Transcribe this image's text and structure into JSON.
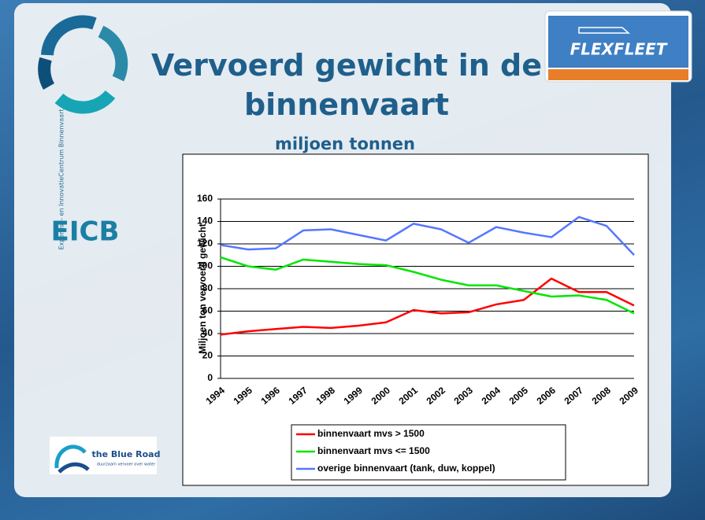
{
  "slide": {
    "title": "Vervoerd gewicht in de binnenvaart",
    "subtitle": "miljoen tonnen",
    "logo_eicb": "EICB",
    "logo_eicb_caption": "Expertise- en InnovatieCentrum Binnenvaart",
    "logo_flexfleet": "FLEXFLEET",
    "logo_blue_road": "the Blue Road",
    "logo_blue_road_caption": "duurzaam vervoer over water"
  },
  "chart_data": {
    "type": "line",
    "y_label": "Miljoen ton vervoerd gewicht",
    "categories": [
      "1994",
      "1995",
      "1996",
      "1997",
      "1998",
      "1999",
      "2000",
      "2001",
      "2002",
      "2003",
      "2004",
      "2005",
      "2006",
      "2007",
      "2008",
      "2009"
    ],
    "series": [
      {
        "name": "binnenvaart mvs > 1500",
        "color": "#ff0000",
        "values": [
          39,
          42,
          44,
          46,
          45,
          47,
          50,
          61,
          58,
          59,
          66,
          70,
          89,
          77,
          77,
          65
        ]
      },
      {
        "name": "binnenvaart mvs <= 1500",
        "color": "#00e600",
        "values": [
          108,
          100,
          97,
          106,
          104,
          102,
          101,
          95,
          88,
          83,
          83,
          78,
          73,
          74,
          70,
          58
        ]
      },
      {
        "name": "overige binnenvaart (tank, duw, koppel)",
        "color": "#5577ff",
        "values": [
          119,
          115,
          116,
          132,
          133,
          128,
          123,
          138,
          133,
          121,
          135,
          130,
          126,
          144,
          136,
          110
        ]
      }
    ],
    "ylim": [
      0,
      160
    ],
    "yticks": [
      0,
      20,
      40,
      60,
      80,
      100,
      120,
      140,
      160
    ],
    "grid": true
  }
}
